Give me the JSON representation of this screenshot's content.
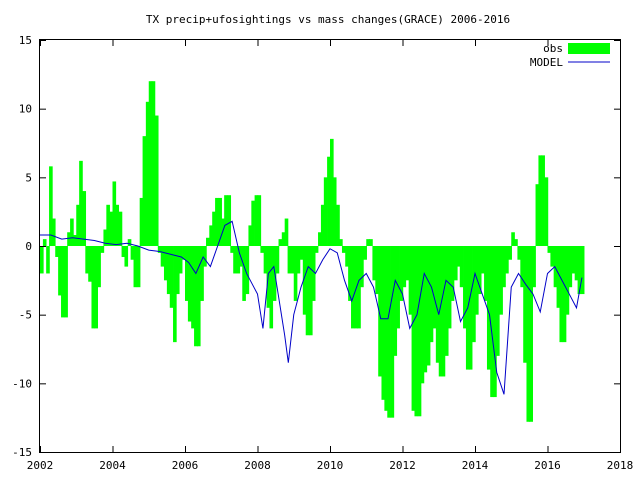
{
  "chart_data": {
    "type": "bar",
    "title": "TX precip+ufosightings vs mass changes(GRACE) 2006-2016",
    "xlabel": "",
    "ylabel": "",
    "xlim": [
      2002,
      2018
    ],
    "ylim": [
      -15,
      15
    ],
    "xticks": [
      2002,
      2004,
      2006,
      2008,
      2010,
      2012,
      2014,
      2016,
      2018
    ],
    "yticks": [
      -15,
      -10,
      -5,
      0,
      5,
      10,
      15
    ],
    "grid": false,
    "legend_position": "top-right",
    "colors": {
      "obs": "#00ff00",
      "model": "#0000c8"
    },
    "series": [
      {
        "name": "obs",
        "kind": "bar",
        "x": [
          2002.0,
          2002.08,
          2002.17,
          2002.25,
          2002.33,
          2002.42,
          2002.5,
          2002.58,
          2002.67,
          2002.75,
          2002.83,
          2002.92,
          2003.0,
          2003.08,
          2003.17,
          2003.25,
          2003.33,
          2003.42,
          2003.5,
          2003.58,
          2003.67,
          2003.75,
          2003.83,
          2003.92,
          2004.0,
          2004.08,
          2004.17,
          2004.25,
          2004.33,
          2004.42,
          2004.5,
          2004.58,
          2004.67,
          2004.75,
          2004.83,
          2004.92,
          2005.0,
          2005.08,
          2005.17,
          2005.25,
          2005.33,
          2005.42,
          2005.5,
          2005.58,
          2005.67,
          2005.75,
          2005.83,
          2005.92,
          2006.0,
          2006.08,
          2006.17,
          2006.25,
          2006.33,
          2006.42,
          2006.5,
          2006.58,
          2006.67,
          2006.75,
          2006.83,
          2006.92,
          2007.0,
          2007.08,
          2007.17,
          2007.25,
          2007.33,
          2007.42,
          2007.5,
          2007.58,
          2007.67,
          2007.75,
          2007.83,
          2007.92,
          2008.0,
          2008.08,
          2008.17,
          2008.25,
          2008.33,
          2008.42,
          2008.5,
          2008.58,
          2008.67,
          2008.75,
          2008.83,
          2008.92,
          2009.0,
          2009.08,
          2009.17,
          2009.25,
          2009.33,
          2009.42,
          2009.5,
          2009.58,
          2009.67,
          2009.75,
          2009.83,
          2009.92,
          2010.0,
          2010.08,
          2010.17,
          2010.25,
          2010.33,
          2010.42,
          2010.5,
          2010.58,
          2010.67,
          2010.75,
          2010.83,
          2010.92,
          2011.0,
          2011.08,
          2011.17,
          2011.25,
          2011.33,
          2011.42,
          2011.5,
          2011.58,
          2011.67,
          2011.75,
          2011.83,
          2011.92,
          2012.0,
          2012.08,
          2012.17,
          2012.25,
          2012.33,
          2012.42,
          2012.5,
          2012.58,
          2012.67,
          2012.75,
          2012.83,
          2012.92,
          2013.0,
          2013.08,
          2013.17,
          2013.25,
          2013.33,
          2013.42,
          2013.5,
          2013.58,
          2013.67,
          2013.75,
          2013.83,
          2013.92,
          2014.0,
          2014.08,
          2014.17,
          2014.25,
          2014.33,
          2014.42,
          2014.5,
          2014.58,
          2014.67,
          2014.75,
          2014.83,
          2014.92,
          2015.0,
          2015.08,
          2015.17,
          2015.25,
          2015.33,
          2015.42,
          2015.5,
          2015.58,
          2015.67,
          2015.75,
          2015.83,
          2015.92,
          2016.0,
          2016.08,
          2016.17,
          2016.25,
          2016.33,
          2016.42,
          2016.5,
          2016.58,
          2016.67,
          2016.75,
          2016.83,
          2016.92
        ],
        "values": [
          -2.0,
          0.5,
          -2.0,
          5.8,
          2.0,
          -0.8,
          -3.6,
          -5.2,
          -5.2,
          1.0,
          2.0,
          0.8,
          3.0,
          6.2,
          4.0,
          -2.0,
          -2.6,
          -6.0,
          -6.0,
          -3.0,
          -0.5,
          1.2,
          3.0,
          2.5,
          4.7,
          3.0,
          2.5,
          -0.8,
          -1.5,
          0.5,
          -1.0,
          -3.0,
          -3.0,
          3.5,
          8.0,
          10.5,
          12.0,
          12.0,
          9.5,
          -0.5,
          -1.5,
          -2.5,
          -3.5,
          -4.5,
          -7.0,
          -3.5,
          -2.0,
          -1.0,
          -4.0,
          -5.5,
          -6.0,
          -7.3,
          -7.3,
          -4.0,
          -1.5,
          0.6,
          1.5,
          2.5,
          3.5,
          3.5,
          2.0,
          3.7,
          3.7,
          -0.5,
          -2.0,
          -2.0,
          -1.5,
          -4.0,
          -3.5,
          1.5,
          3.3,
          3.7,
          3.7,
          -0.5,
          -2.0,
          -4.5,
          -6.0,
          -4.0,
          -2.0,
          0.5,
          1.0,
          2.0,
          -2.0,
          -2.0,
          -4.0,
          -2.0,
          -1.0,
          -5.0,
          -6.5,
          -6.5,
          -4.0,
          -0.5,
          1.0,
          3.0,
          5.0,
          6.5,
          7.8,
          5.0,
          3.0,
          0.5,
          -0.5,
          -1.5,
          -4.0,
          -6.0,
          -6.0,
          -6.0,
          -3.0,
          -1.0,
          0.5,
          0.5,
          -2.5,
          -3.5,
          -9.5,
          -11.2,
          -12.0,
          -12.5,
          -12.5,
          -8.0,
          -6.0,
          -4.0,
          -3.0,
          -2.5,
          -5.0,
          -12.0,
          -12.4,
          -12.4,
          -10.0,
          -9.2,
          -8.7,
          -7.0,
          -6.0,
          -8.5,
          -9.5,
          -9.5,
          -8.0,
          -6.0,
          -4.0,
          -2.5,
          -1.5,
          -3.0,
          -6.0,
          -9.0,
          -9.0,
          -7.0,
          -5.0,
          -3.5,
          -2.0,
          -4.0,
          -9.0,
          -11.0,
          -11.0,
          -8.0,
          -5.0,
          -3.0,
          -2.0,
          -1.0,
          1.0,
          0.5,
          -1.0,
          -3.0,
          -8.5,
          -12.8,
          -12.8,
          -3.0,
          4.5,
          6.6,
          6.6,
          5.0,
          -0.5,
          -1.5,
          -3.0,
          -4.5,
          -7.0,
          -7.0,
          -5.0,
          -3.0,
          -2.0,
          -2.5,
          -3.5,
          -3.5
        ]
      },
      {
        "name": "MODEL",
        "kind": "line",
        "x": [
          2002.0,
          2002.3,
          2002.6,
          2002.9,
          2003.2,
          2003.5,
          2003.8,
          2004.1,
          2004.4,
          2004.7,
          2005.0,
          2005.3,
          2005.6,
          2005.9,
          2006.1,
          2006.3,
          2006.5,
          2006.7,
          2006.9,
          2007.1,
          2007.3,
          2007.5,
          2007.7,
          2007.9,
          2008.0,
          2008.15,
          2008.3,
          2008.45,
          2008.6,
          2008.75,
          2008.85,
          2009.0,
          2009.2,
          2009.4,
          2009.6,
          2009.8,
          2010.0,
          2010.2,
          2010.4,
          2010.6,
          2010.8,
          2011.0,
          2011.2,
          2011.4,
          2011.6,
          2011.8,
          2012.0,
          2012.2,
          2012.4,
          2012.6,
          2012.8,
          2013.0,
          2013.2,
          2013.4,
          2013.6,
          2013.8,
          2014.0,
          2014.2,
          2014.4,
          2014.6,
          2014.8,
          2015.0,
          2015.2,
          2015.4,
          2015.6,
          2015.8,
          2016.0,
          2016.2,
          2016.4,
          2016.6,
          2016.8,
          2016.95
        ],
        "values": [
          0.8,
          0.8,
          0.5,
          0.6,
          0.5,
          0.4,
          0.2,
          0.1,
          0.2,
          0.0,
          -0.3,
          -0.4,
          -0.6,
          -0.8,
          -1.2,
          -2.0,
          -0.8,
          -1.5,
          0.0,
          1.5,
          1.8,
          -0.5,
          -2.0,
          -3.0,
          -3.5,
          -6.0,
          -2.0,
          -1.5,
          -4.0,
          -6.5,
          -8.5,
          -5.0,
          -3.0,
          -1.5,
          -2.0,
          -1.0,
          -0.2,
          -0.5,
          -2.5,
          -4.0,
          -2.5,
          -2.0,
          -3.0,
          -5.3,
          -5.3,
          -2.5,
          -3.5,
          -6.0,
          -5.0,
          -2.0,
          -3.0,
          -5.0,
          -2.5,
          -3.0,
          -5.5,
          -4.5,
          -2.0,
          -3.5,
          -5.0,
          -9.2,
          -10.8,
          -3.0,
          -2.0,
          -2.8,
          -3.5,
          -4.8,
          -2.0,
          -1.5,
          -2.5,
          -3.5,
          -4.5,
          -2.3
        ]
      }
    ]
  }
}
